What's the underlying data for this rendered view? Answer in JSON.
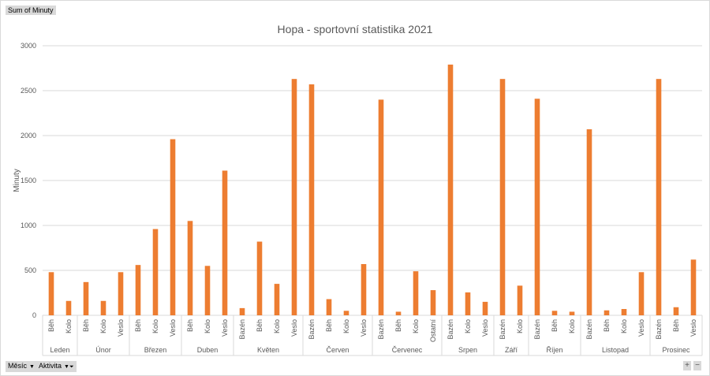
{
  "pivot": {
    "value_field": "Sum of Minuty",
    "row_fields": [
      "Měsíc",
      "Aktivita"
    ]
  },
  "chart_data": {
    "type": "bar",
    "title": "Hopa - sportovní statistika 2021",
    "xlabel": "",
    "ylabel": "Minuty",
    "ylim": [
      0,
      3000
    ],
    "yticks": [
      0,
      500,
      1000,
      1500,
      2000,
      2500,
      3000
    ],
    "grid": true,
    "color": "#ed7d31",
    "groups": [
      {
        "name": "Leden",
        "items": [
          {
            "label": "Běh",
            "value": 480
          },
          {
            "label": "Kolo",
            "value": 160
          }
        ]
      },
      {
        "name": "Únor",
        "items": [
          {
            "label": "Běh",
            "value": 370
          },
          {
            "label": "Kolo",
            "value": 160
          },
          {
            "label": "Veslo",
            "value": 480
          }
        ]
      },
      {
        "name": "Březen",
        "items": [
          {
            "label": "Běh",
            "value": 560
          },
          {
            "label": "Kolo",
            "value": 960
          },
          {
            "label": "Veslo",
            "value": 1960
          }
        ]
      },
      {
        "name": "Duben",
        "items": [
          {
            "label": "Běh",
            "value": 1050
          },
          {
            "label": "Kolo",
            "value": 550
          },
          {
            "label": "Veslo",
            "value": 1610
          }
        ]
      },
      {
        "name": "Květen",
        "items": [
          {
            "label": "Bazén",
            "value": 80
          },
          {
            "label": "Běh",
            "value": 820
          },
          {
            "label": "Kolo",
            "value": 350
          },
          {
            "label": "Veslo",
            "value": 2630
          }
        ]
      },
      {
        "name": "Červen",
        "items": [
          {
            "label": "Bazén",
            "value": 2570
          },
          {
            "label": "Běh",
            "value": 180
          },
          {
            "label": "Kolo",
            "value": 50
          },
          {
            "label": "Veslo",
            "value": 570
          }
        ]
      },
      {
        "name": "Červenec",
        "items": [
          {
            "label": "Bazén",
            "value": 2400
          },
          {
            "label": "Běh",
            "value": 40
          },
          {
            "label": "Kolo",
            "value": 490
          },
          {
            "label": "Ostatní",
            "value": 280
          }
        ]
      },
      {
        "name": "Srpen",
        "items": [
          {
            "label": "Bazén",
            "value": 2790
          },
          {
            "label": "Kolo",
            "value": 255
          },
          {
            "label": "Veslo",
            "value": 150
          }
        ]
      },
      {
        "name": "Září",
        "items": [
          {
            "label": "Bazén",
            "value": 2630
          },
          {
            "label": "Kolo",
            "value": 330
          }
        ]
      },
      {
        "name": "Říjen",
        "items": [
          {
            "label": "Bazén",
            "value": 2410
          },
          {
            "label": "Běh",
            "value": 50
          },
          {
            "label": "Kolo",
            "value": 40
          }
        ]
      },
      {
        "name": "Listopad",
        "items": [
          {
            "label": "Bazén",
            "value": 2070
          },
          {
            "label": "Běh",
            "value": 55
          },
          {
            "label": "Kolo",
            "value": 70
          },
          {
            "label": "Veslo",
            "value": 480
          }
        ]
      },
      {
        "name": "Prosinec",
        "items": [
          {
            "label": "Bazén",
            "value": 2630
          },
          {
            "label": "Běh",
            "value": 90
          },
          {
            "label": "Veslo",
            "value": 620
          }
        ]
      }
    ]
  }
}
